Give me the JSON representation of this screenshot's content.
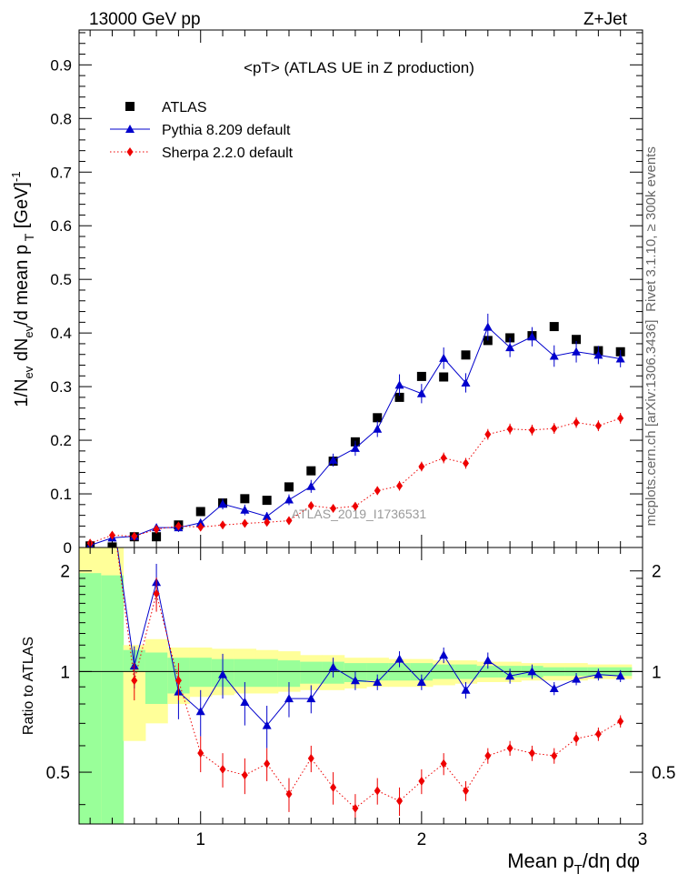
{
  "header": {
    "left": "13000 GeV pp",
    "right": "Z+Jet"
  },
  "side_labels": {
    "top": "Rivet 3.1.10, ≥ 300k events",
    "bottom": "mcplots.cern.ch [arXiv:1306.3436]"
  },
  "watermark": "ATLAS_2019_I1736531",
  "colors": {
    "atlas": "#000000",
    "pythia": "#0000cc",
    "sherpa": "#ee0000",
    "band_inner": "#99ff99",
    "band_outer": "#ffff99"
  },
  "chart_data": [
    {
      "type": "scatter",
      "title": "<pT>  (ATLAS UE in Z production)",
      "ylabel": "1/N_ev dN_ev/d mean p_T [GeV]^-1",
      "ylim": [
        0,
        0.965
      ],
      "yticks": [
        0,
        0.1,
        0.2,
        0.3,
        0.4,
        0.5,
        0.6,
        0.7,
        0.8,
        0.9
      ],
      "xlim": [
        0.45,
        3.0
      ],
      "legend_position": "top-left",
      "x": [
        0.5,
        0.6,
        0.7,
        0.8,
        0.9,
        1.0,
        1.1,
        1.2,
        1.3,
        1.4,
        1.5,
        1.6,
        1.7,
        1.8,
        1.9,
        2.0,
        2.1,
        2.2,
        2.3,
        2.4,
        2.5,
        2.6,
        2.7,
        2.8,
        2.9
      ],
      "series": [
        {
          "name": "ATLAS",
          "marker": "square",
          "values": [
            0.003,
            0.001,
            0.02,
            0.02,
            0.042,
            0.067,
            0.083,
            0.091,
            0.088,
            0.113,
            0.143,
            0.161,
            0.197,
            0.242,
            0.28,
            0.319,
            0.318,
            0.359,
            0.386,
            0.391,
            0.395,
            0.412,
            0.388,
            0.367,
            0.365
          ]
        },
        {
          "name": "Pythia 8.209 default",
          "marker": "triangle",
          "line": "solid",
          "values": [
            0.004,
            0.018,
            0.021,
            0.037,
            0.037,
            0.046,
            0.081,
            0.07,
            0.058,
            0.089,
            0.114,
            0.163,
            0.185,
            0.221,
            0.303,
            0.287,
            0.353,
            0.307,
            0.411,
            0.373,
            0.393,
            0.357,
            0.365,
            0.359,
            0.352
          ],
          "errors": [
            0.002,
            0.004,
            0.004,
            0.007,
            0.008,
            0.007,
            0.01,
            0.01,
            0.008,
            0.01,
            0.012,
            0.012,
            0.014,
            0.015,
            0.02,
            0.018,
            0.02,
            0.018,
            0.025,
            0.018,
            0.018,
            0.02,
            0.02,
            0.017,
            0.016
          ]
        },
        {
          "name": "Sherpa 2.2.0 default",
          "marker": "diamond",
          "line": "dotted",
          "values": [
            0.008,
            0.023,
            0.021,
            0.034,
            0.04,
            0.038,
            0.042,
            0.045,
            0.047,
            0.05,
            0.078,
            0.073,
            0.077,
            0.106,
            0.115,
            0.151,
            0.167,
            0.157,
            0.211,
            0.221,
            0.219,
            0.222,
            0.233,
            0.227,
            0.241
          ],
          "errors": [
            0.002,
            0.003,
            0.003,
            0.005,
            0.005,
            0.005,
            0.006,
            0.006,
            0.006,
            0.006,
            0.007,
            0.007,
            0.007,
            0.008,
            0.009,
            0.009,
            0.01,
            0.01,
            0.01,
            0.01,
            0.01,
            0.01,
            0.01,
            0.01,
            0.01
          ]
        }
      ]
    },
    {
      "type": "scatter",
      "ylabel": "Ratio to ATLAS",
      "xlabel": "Mean p_T/dη dφ",
      "ylim": [
        0.35,
        2.35
      ],
      "yticks": [
        0.5,
        1,
        2
      ],
      "xticks": [
        1,
        2,
        3
      ],
      "xlim": [
        0.45,
        3.0
      ],
      "reference_line": 1,
      "x": [
        0.7,
        0.8,
        0.9,
        1.0,
        1.1,
        1.2,
        1.3,
        1.4,
        1.5,
        1.6,
        1.7,
        1.8,
        1.9,
        2.0,
        2.1,
        2.2,
        2.3,
        2.4,
        2.5,
        2.6,
        2.7,
        2.8,
        2.9
      ],
      "bands": {
        "bin_edges": [
          0.45,
          0.55,
          0.65,
          0.75,
          0.85,
          0.95,
          1.05,
          1.15,
          1.25,
          1.35,
          1.45,
          1.55,
          1.65,
          1.75,
          1.85,
          1.95,
          2.05,
          2.15,
          2.25,
          2.35,
          2.45,
          2.55,
          2.65,
          2.75,
          2.85,
          2.95
        ],
        "inner_low": [
          0.35,
          0.35,
          1.0,
          0.8,
          0.86,
          0.9,
          0.9,
          0.9,
          0.9,
          0.9,
          0.92,
          0.92,
          0.93,
          0.94,
          0.94,
          0.94,
          0.95,
          0.95,
          0.96,
          0.96,
          0.96,
          0.97,
          0.97,
          0.97,
          0.97
        ],
        "inner_high": [
          1.97,
          1.94,
          1.16,
          1.14,
          1.1,
          1.1,
          1.09,
          1.09,
          1.09,
          1.08,
          1.07,
          1.07,
          1.06,
          1.06,
          1.06,
          1.06,
          1.05,
          1.05,
          1.04,
          1.04,
          1.04,
          1.03,
          1.03,
          1.03,
          1.03
        ],
        "outer_low": [
          0.35,
          0.35,
          0.62,
          0.7,
          0.8,
          0.84,
          0.85,
          0.86,
          0.86,
          0.87,
          0.88,
          0.88,
          0.89,
          0.9,
          0.9,
          0.9,
          0.91,
          0.92,
          0.93,
          0.93,
          0.94,
          0.94,
          0.94,
          0.95,
          0.95
        ],
        "outer_high": [
          2.35,
          2.35,
          1.2,
          1.25,
          1.18,
          1.18,
          1.17,
          1.17,
          1.16,
          1.15,
          1.12,
          1.12,
          1.1,
          1.1,
          1.09,
          1.09,
          1.08,
          1.08,
          1.07,
          1.07,
          1.06,
          1.06,
          1.06,
          1.05,
          1.05
        ]
      },
      "series": [
        {
          "name": "Pythia 8.209 default",
          "marker": "triangle",
          "values": [
            1.04,
            1.85,
            0.87,
            0.76,
            0.98,
            0.81,
            0.69,
            0.83,
            0.83,
            1.03,
            0.94,
            0.93,
            1.09,
            0.93,
            1.12,
            0.88,
            1.08,
            0.97,
            1.0,
            0.89,
            0.95,
            0.98,
            0.97
          ],
          "errors": [
            0.15,
            0.25,
            0.15,
            0.12,
            0.15,
            0.12,
            0.1,
            0.1,
            0.08,
            0.07,
            0.06,
            0.05,
            0.06,
            0.05,
            0.06,
            0.05,
            0.06,
            0.05,
            0.05,
            0.04,
            0.04,
            0.04,
            0.04
          ]
        },
        {
          "name": "Sherpa 2.2.0 default",
          "marker": "diamond",
          "values": [
            0.94,
            1.71,
            0.94,
            0.57,
            0.51,
            0.49,
            0.53,
            0.43,
            0.55,
            0.45,
            0.39,
            0.44,
            0.41,
            0.47,
            0.53,
            0.44,
            0.56,
            0.59,
            0.57,
            0.56,
            0.63,
            0.65,
            0.71
          ],
          "errors": [
            0.12,
            0.2,
            0.12,
            0.07,
            0.06,
            0.06,
            0.06,
            0.05,
            0.05,
            0.05,
            0.04,
            0.04,
            0.04,
            0.04,
            0.04,
            0.03,
            0.03,
            0.03,
            0.03,
            0.03,
            0.03,
            0.03,
            0.03
          ]
        }
      ]
    }
  ]
}
